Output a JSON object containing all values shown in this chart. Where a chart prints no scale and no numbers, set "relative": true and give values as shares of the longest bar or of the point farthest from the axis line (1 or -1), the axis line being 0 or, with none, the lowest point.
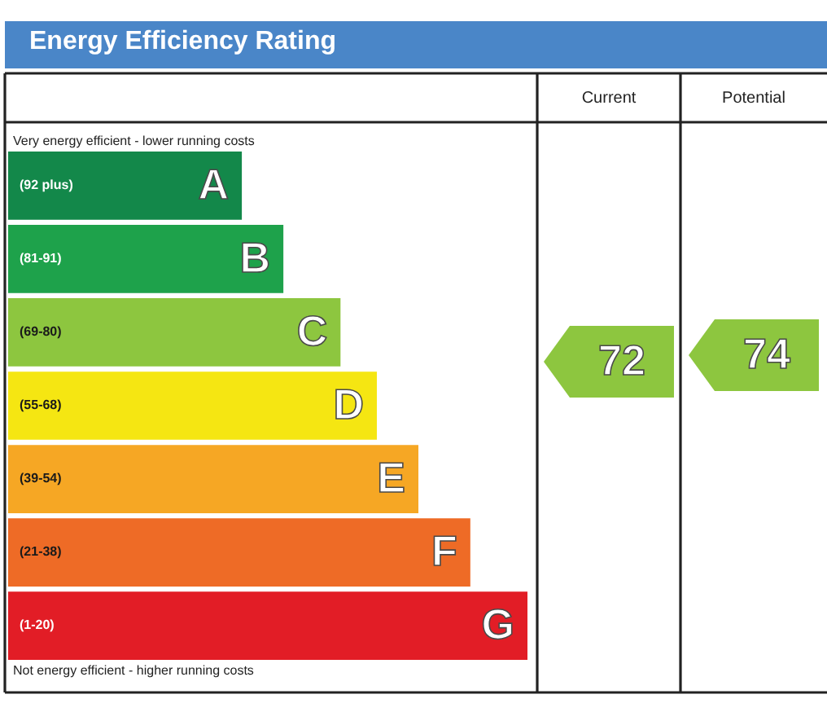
{
  "chart_data": {
    "type": "bar",
    "orientation": "horizontal",
    "relative": true,
    "title": "Energy Efficiency Rating",
    "categories": [
      "A",
      "B",
      "C",
      "D",
      "E",
      "F",
      "G"
    ],
    "values": [
      0.45,
      0.53,
      0.64,
      0.71,
      0.79,
      0.89,
      1
    ],
    "colors": [
      "#13884a",
      "#1ea24b",
      "#8dc63f",
      "#f5e612",
      "#f6a724",
      "#ee6b26",
      "#e21d26"
    ],
    "annotations": [
      "Very energy efficient - lower running costs",
      "Not energy efficient - higher running costs",
      "Current",
      "Potential",
      "(92 plus)",
      "(81-91)",
      "(69-80)",
      "(55-68)",
      "(39-54)",
      "(21-38)",
      "(1-20)",
      "72",
      "74"
    ]
  }
}
